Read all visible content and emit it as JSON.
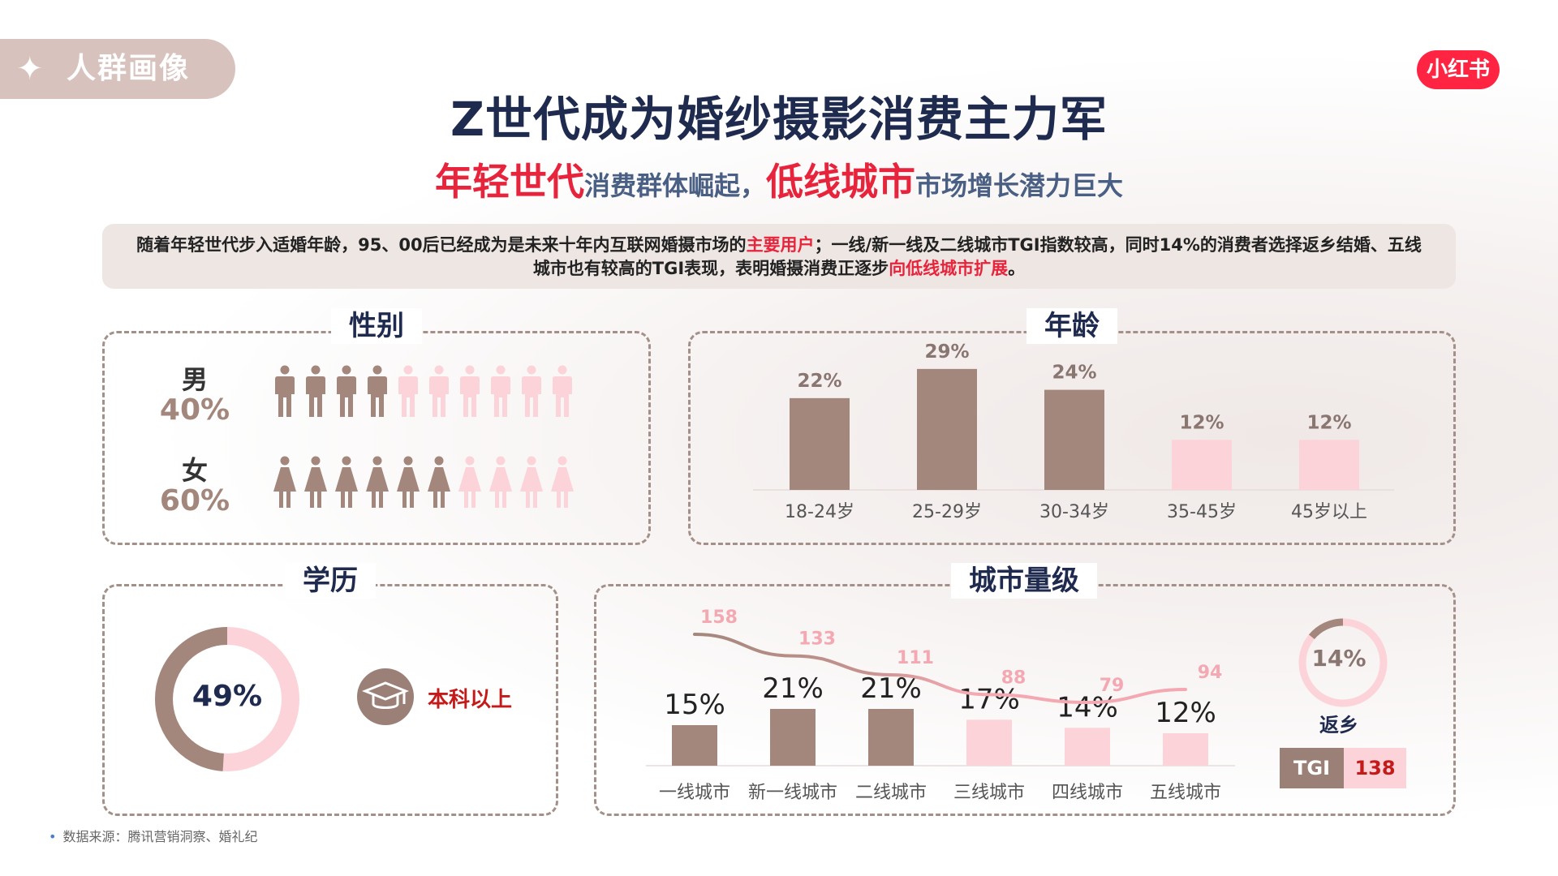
{
  "header": {
    "tab_label": "人群画像",
    "logo_text": "小红书",
    "title": "Z世代成为婚纱摄影消费主力军",
    "subtitle_parts": [
      "年轻世代",
      "消费群体崛起，",
      "低线城市",
      "市场增长潜力巨大"
    ]
  },
  "summary": {
    "part1": "随着年轻世代步入适婚年龄，95、00后已经成为是未来十年内互联网婚摄市场的",
    "hl1": "主要用户",
    "part2": "；一线/新一线及二线城市TGI指数较高，同时14%的消费者选择返乡结婚、五线城市也有较高的TGI表现，表明婚摄消费正逐步",
    "hl2": "向低线城市扩展",
    "part3": "。"
  },
  "colors": {
    "brown": "#a3877c",
    "pink": "#fcd3d8",
    "red": "#e8243c",
    "navy": "#1f2a4f",
    "line_pink": "#f4a8b2"
  },
  "sections": {
    "gender": "性别",
    "age": "年龄",
    "education": "学历",
    "city": "城市量级"
  },
  "chart_data": [
    {
      "type": "pictogram",
      "title": "性别",
      "series": [
        {
          "name": "男",
          "value": 40,
          "label": "40%",
          "icon": "male-icon",
          "icons_filled": 4,
          "icons_total": 10
        },
        {
          "name": "女",
          "value": 60,
          "label": "60%",
          "icon": "female-icon",
          "icons_filled": 6,
          "icons_total": 10
        }
      ]
    },
    {
      "type": "bar",
      "title": "年龄",
      "categories": [
        "18-24岁",
        "25-29岁",
        "30-34岁",
        "35-45岁",
        "45岁以上"
      ],
      "values": [
        22,
        29,
        24,
        12,
        12
      ],
      "labels": [
        "22%",
        "29%",
        "24%",
        "12%",
        "12%"
      ],
      "highlight": [
        true,
        true,
        true,
        false,
        false
      ],
      "ylim": [
        0,
        35
      ]
    },
    {
      "type": "pie",
      "title": "学历",
      "values": [
        49,
        51
      ],
      "center_label": "49%",
      "caption": "本科以上",
      "icon": "graduation-cap-icon"
    },
    {
      "type": "bar",
      "title": "城市量级",
      "categories": [
        "一线城市",
        "新一线城市",
        "二线城市",
        "三线城市",
        "四线城市",
        "五线城市"
      ],
      "values": [
        15,
        21,
        21,
        17,
        14,
        12
      ],
      "labels": [
        "15%",
        "21%",
        "21%",
        "17%",
        "14%",
        "12%"
      ],
      "highlight": [
        true,
        true,
        true,
        false,
        false,
        false
      ],
      "tgi_line": {
        "values": [
          158,
          133,
          111,
          88,
          79,
          94
        ],
        "labels": [
          "158",
          "133",
          "111",
          "88",
          "79",
          "94"
        ]
      },
      "ylim": [
        0,
        30
      ]
    },
    {
      "type": "pie",
      "title": "返乡",
      "values": [
        14,
        86
      ],
      "center_label": "14%",
      "caption": "返乡",
      "tgi_key": "TGI",
      "tgi_value": "138"
    }
  ],
  "footer": {
    "source": "数据来源：腾讯营销洞察、婚礼纪"
  }
}
